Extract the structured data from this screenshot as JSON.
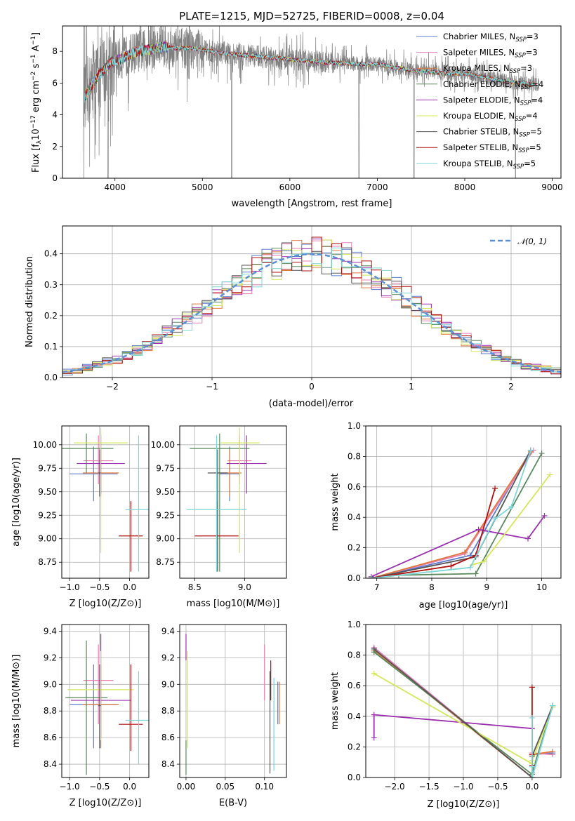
{
  "chart_data": [
    {
      "type": "line",
      "title": "PLATE=1215, MJD=52725, FIBERID=0008, z=0.04",
      "xlabel": "wavelength [Angstrom, rest frame]",
      "ylabel": "Flux [f_λ 10^-17 erg cm^-2 s^-1 A^-1]",
      "xlim": [
        3400,
        9100
      ],
      "ylim": [
        0,
        9.6
      ],
      "xticks": [
        4000,
        5000,
        6000,
        7000,
        8000,
        9000
      ],
      "yticks": [
        0,
        2,
        4,
        6,
        8
      ],
      "legend_position": "upper right",
      "data_series": {
        "name": "data",
        "color": "#808080"
      },
      "x": [
        3650,
        3800,
        3950,
        4100,
        4250,
        4400,
        4550,
        4700,
        4850,
        5000,
        5200,
        5400,
        5600,
        5800,
        6000,
        6200,
        6400,
        6600,
        6800,
        7000,
        7200,
        7400,
        7600,
        7800,
        8000,
        8200,
        8400,
        8600,
        8800
      ],
      "model_flux": [
        5.1,
        6.4,
        7.3,
        7.6,
        8.0,
        8.1,
        8.3,
        8.2,
        8.2,
        8.1,
        7.9,
        7.8,
        7.7,
        7.6,
        7.5,
        7.4,
        7.3,
        7.25,
        7.2,
        7.2,
        7.0,
        6.8,
        6.7,
        6.6,
        6.6,
        6.4,
        6.2,
        6.0,
        5.9
      ],
      "series": [
        {
          "name": "Chabrier MILES, N_SSP=3",
          "color": "#5b7bcf"
        },
        {
          "name": "Salpeter MILES, N_SSP=3",
          "color": "#e87fb6"
        },
        {
          "name": "Kroupa MILES, N_SSP=3",
          "color": "#e07a3c"
        },
        {
          "name": "Chabrier ELODIE, N_SSP=4",
          "color": "#5b8a5e"
        },
        {
          "name": "Salpeter ELODIE, N_SSP=4",
          "color": "#9b30b0"
        },
        {
          "name": "Kroupa ELODIE, N_SSP=4",
          "color": "#d4e85a"
        },
        {
          "name": "Chabrier STELIB, N_SSP=5",
          "color": "#555555"
        },
        {
          "name": "Salpeter STELIB, N_SSP=5",
          "color": "#b01010"
        },
        {
          "name": "Kroupa STELIB, N_SSP=5",
          "color": "#7fd6d6"
        }
      ]
    },
    {
      "type": "line",
      "title": "",
      "xlabel": "(data-model)/error",
      "ylabel": "Normed distribution",
      "xlim": [
        -2.5,
        2.5
      ],
      "ylim": [
        0,
        0.49
      ],
      "xticks": [
        -2,
        -1,
        0,
        1,
        2
      ],
      "yticks": [
        0.0,
        0.1,
        0.2,
        0.3,
        0.4
      ],
      "grid": true,
      "legend": "𝒩(0, 1)",
      "legend_position": "upper right",
      "gauss_color": "#5b8fd6",
      "hist_bin_width": 0.1,
      "hist_series_colors": [
        "#5b7bcf",
        "#e87fb6",
        "#e07a3c",
        "#5b8a5e",
        "#9b30b0",
        "#d4e85a",
        "#555555",
        "#b01010",
        "#7fd6d6"
      ]
    },
    {
      "type": "scatter",
      "xlabel": "Z [log10(Z/Z⊙)]",
      "ylabel": "age  [log10(age/yr)]",
      "xlim": [
        -1.13,
        0.32
      ],
      "ylim": [
        8.58,
        10.2
      ],
      "xticks": [
        -1.0,
        -0.5,
        0.0
      ],
      "yticks": [
        8.75,
        9.0,
        9.25,
        9.5,
        9.75,
        10.0
      ],
      "grid": true,
      "points": [
        {
          "x": -0.6,
          "y": 9.69,
          "xerr": 0.4,
          "yerr": [
            9.4,
            9.98
          ],
          "color": "#5b7bcf"
        },
        {
          "x": -0.52,
          "y": 9.83,
          "xerr": 0.25,
          "yerr": [
            9.58,
            10.1
          ],
          "color": "#e87fb6"
        },
        {
          "x": -0.48,
          "y": 9.7,
          "xerr": 0.3,
          "yerr": [
            9.45,
            9.95
          ],
          "color": "#e07a3c"
        },
        {
          "x": -0.72,
          "y": 9.96,
          "xerr": 0.45,
          "yerr": [
            9.7,
            10.12
          ],
          "color": "#5b8a5e"
        },
        {
          "x": -0.48,
          "y": 9.8,
          "xerr": 0.4,
          "yerr": [
            9.48,
            10.1
          ],
          "color": "#9b30b0"
        },
        {
          "x": -0.48,
          "y": 10.02,
          "xerr": 0.45,
          "yerr": [
            8.85,
            10.18
          ],
          "color": "#d4e85a"
        },
        {
          "x": -0.5,
          "y": 9.7,
          "xerr": 0.02,
          "yerr": [
            9.45,
            9.95
          ],
          "color": "#555555"
        },
        {
          "x": 0.02,
          "y": 9.03,
          "xerr": 0.2,
          "yerr": [
            8.65,
            9.4
          ],
          "color": "#b01010"
        },
        {
          "x": 0.15,
          "y": 9.31,
          "xerr": 0.22,
          "yerr": [
            8.65,
            10.1
          ],
          "color": "#7fd6d6"
        }
      ]
    },
    {
      "type": "scatter",
      "xlabel": "mass [log10(M/M⊙)]",
      "ylabel": "",
      "xlim": [
        8.35,
        9.42
      ],
      "ylim": [
        8.58,
        10.2
      ],
      "xticks": [
        8.5,
        9.0
      ],
      "yticks": [
        8.75,
        9.0,
        9.25,
        9.5,
        9.75,
        10.0
      ],
      "grid": true,
      "points": [
        {
          "x": 8.85,
          "y": 9.69,
          "xerr": 0.1,
          "yerr": [
            9.4,
            9.98
          ],
          "color": "#5b7bcf"
        },
        {
          "x": 8.95,
          "y": 9.83,
          "xerr": 0.12,
          "yerr": [
            9.58,
            10.1
          ],
          "color": "#e87fb6"
        },
        {
          "x": 8.85,
          "y": 9.7,
          "xerr": 0.12,
          "yerr": [
            9.45,
            9.95
          ],
          "color": "#e07a3c"
        },
        {
          "x": 8.75,
          "y": 9.96,
          "xerr": 0.3,
          "yerr": [
            8.65,
            10.12
          ],
          "color": "#5b8a5e"
        },
        {
          "x": 9.02,
          "y": 9.8,
          "xerr": 0.2,
          "yerr": [
            9.48,
            10.1
          ],
          "color": "#9b30b0"
        },
        {
          "x": 8.95,
          "y": 10.02,
          "xerr": 0.2,
          "yerr": [
            8.85,
            10.18
          ],
          "color": "#d4e85a"
        },
        {
          "x": 8.73,
          "y": 9.7,
          "xerr": 0.1,
          "yerr": [
            8.65,
            9.95
          ],
          "color": "#555555"
        },
        {
          "x": 8.72,
          "y": 9.03,
          "xerr": 0.22,
          "yerr": [
            8.65,
            9.4
          ],
          "color": "#b01010"
        },
        {
          "x": 8.72,
          "y": 9.31,
          "xerr": 0.3,
          "yerr": [
            8.65,
            10.1
          ],
          "color": "#7fd6d6"
        }
      ]
    },
    {
      "type": "line",
      "xlabel": "age  [log10(age/yr)]",
      "ylabel": "mass weight",
      "xlim": [
        6.8,
        10.35
      ],
      "ylim": [
        0,
        1.0
      ],
      "xticks": [
        7,
        8,
        9,
        10
      ],
      "yticks": [
        0.0,
        0.2,
        0.4,
        0.6,
        0.8,
        1.0
      ],
      "grid": true,
      "series": [
        {
          "color": "#5b7bcf",
          "x": [
            6.9,
            8.7,
            9.8
          ],
          "y": [
            0.0,
            0.15,
            0.84
          ]
        },
        {
          "color": "#e87fb6",
          "x": [
            6.9,
            8.6,
            9.85
          ],
          "y": [
            0.0,
            0.16,
            0.84
          ]
        },
        {
          "color": "#e07a3c",
          "x": [
            6.9,
            8.6,
            9.8
          ],
          "y": [
            0.0,
            0.17,
            0.83
          ]
        },
        {
          "color": "#5b8a5e",
          "x": [
            7.4,
            8.8,
            10.0
          ],
          "y": [
            0.02,
            0.03,
            0.82
          ]
        },
        {
          "color": "#9b30b0",
          "x": [
            6.9,
            8.85,
            9.75,
            10.05
          ],
          "y": [
            0.01,
            0.32,
            0.26,
            0.41
          ]
        },
        {
          "color": "#d4e85a",
          "x": [
            8.75,
            8.95,
            10.15
          ],
          "y": [
            0.09,
            0.11,
            0.68
          ]
        },
        {
          "color": "#555555",
          "x": [
            6.9,
            8.8,
            9.8
          ],
          "y": [
            0.0,
            0.14,
            0.84
          ]
        },
        {
          "color": "#b01010",
          "x": [
            6.9,
            8.35,
            8.8,
            9.15
          ],
          "y": [
            0.0,
            0.08,
            0.15,
            0.59
          ]
        },
        {
          "color": "#7fd6d6",
          "x": [
            6.9,
            8.7,
            9.15,
            9.45,
            9.8
          ],
          "y": [
            0.0,
            0.07,
            0.39,
            0.47,
            0.84
          ]
        }
      ]
    },
    {
      "type": "scatter",
      "xlabel": "Z [log10(Z/Z⊙)]",
      "ylabel": "mass [log10(M/M⊙)]",
      "xlim": [
        -1.13,
        0.32
      ],
      "ylim": [
        8.3,
        9.45
      ],
      "xticks": [
        -1.0,
        -0.5,
        0.0
      ],
      "yticks": [
        8.4,
        8.6,
        8.8,
        9.0,
        9.2,
        9.4
      ],
      "grid": true,
      "points": [
        {
          "x": -0.6,
          "y": 8.85,
          "xerr": 0.4,
          "yerr": [
            8.52,
            9.15
          ],
          "color": "#5b7bcf"
        },
        {
          "x": -0.52,
          "y": 9.03,
          "xerr": 0.25,
          "yerr": [
            8.7,
            9.3
          ],
          "color": "#e87fb6"
        },
        {
          "x": -0.48,
          "y": 8.85,
          "xerr": 0.3,
          "yerr": [
            8.52,
            9.15
          ],
          "color": "#e07a3c"
        },
        {
          "x": -0.72,
          "y": 8.9,
          "xerr": 0.35,
          "yerr": [
            8.32,
            9.33
          ],
          "color": "#5b8a5e"
        },
        {
          "x": -0.48,
          "y": 8.88,
          "xerr": 0.5,
          "yerr": [
            8.6,
            9.38
          ],
          "color": "#9b30b0"
        },
        {
          "x": -0.48,
          "y": 8.96,
          "xerr": 0.55,
          "yerr": [
            8.58,
            9.25
          ],
          "color": "#d4e85a"
        },
        {
          "x": -0.5,
          "y": 8.84,
          "xerr": 0.02,
          "yerr": [
            8.52,
            9.15
          ],
          "color": "#555555"
        },
        {
          "x": 0.02,
          "y": 8.7,
          "xerr": 0.2,
          "yerr": [
            8.5,
            9.15
          ],
          "color": "#b01010"
        },
        {
          "x": 0.15,
          "y": 8.73,
          "xerr": 0.22,
          "yerr": [
            8.4,
            9.1
          ],
          "color": "#7fd6d6"
        }
      ]
    },
    {
      "type": "scatter",
      "xlabel": "E(B-V)",
      "ylabel": "",
      "xlim": [
        -0.008,
        0.128
      ],
      "ylim": [
        8.3,
        9.45
      ],
      "xticks": [
        0.0,
        0.05,
        0.1
      ],
      "yticks": [
        8.4,
        8.6,
        8.8,
        9.0,
        9.2,
        9.4
      ],
      "grid": true,
      "points": [
        {
          "x": 0.117,
          "y": 8.85,
          "yerr": [
            8.7,
            9.02
          ],
          "color": "#5b7bcf"
        },
        {
          "x": 0.1,
          "y": 9.03,
          "yerr": [
            8.88,
            9.3
          ],
          "color": "#e87fb6"
        },
        {
          "x": 0.119,
          "y": 8.85,
          "yerr": [
            8.7,
            9.02
          ],
          "color": "#e07a3c"
        },
        {
          "x": 0.0,
          "y": 8.4,
          "yerr": [
            8.32,
            8.58
          ],
          "color": "#5b8a5e"
        },
        {
          "x": 0.0,
          "y": 9.3,
          "yerr": [
            9.18,
            9.38
          ],
          "color": "#9b30b0"
        },
        {
          "x": 0.002,
          "y": 8.96,
          "yerr": [
            8.52,
            9.25
          ],
          "color": "#d4e85a"
        },
        {
          "x": 0.107,
          "y": 8.84,
          "yerr": [
            8.33,
            9.1
          ],
          "color": "#555555"
        },
        {
          "x": 0.108,
          "y": 9.08,
          "yerr": [
            8.88,
            9.18
          ],
          "color": "#b01010"
        },
        {
          "x": 0.112,
          "y": 8.85,
          "yerr": [
            8.35,
            9.05
          ],
          "color": "#7fd6d6"
        }
      ]
    },
    {
      "type": "line",
      "xlabel": "Z [log10(Z/Z⊙)]",
      "ylabel": "mass weight",
      "xlim": [
        -2.42,
        0.42
      ],
      "ylim": [
        0,
        1.0
      ],
      "xticks": [
        -2.0,
        -1.5,
        -1.0,
        -0.5,
        0.0
      ],
      "yticks": [
        0.0,
        0.2,
        0.4,
        0.6,
        0.8,
        1.0
      ],
      "grid": true,
      "series": [
        {
          "color": "#5b7bcf",
          "x": [
            -2.3,
            0.0,
            0.0,
            0.3
          ],
          "y": [
            0.84,
            0.0,
            0.15,
            0.16
          ]
        },
        {
          "color": "#e87fb6",
          "x": [
            -2.3,
            0.0,
            0.0,
            0.3
          ],
          "y": [
            0.85,
            0.0,
            0.16,
            0.15
          ]
        },
        {
          "color": "#e07a3c",
          "x": [
            -2.3,
            0.0,
            0.0,
            0.3
          ],
          "y": [
            0.83,
            0.0,
            0.15,
            0.17
          ]
        },
        {
          "color": "#5b8a5e",
          "x": [
            -2.3,
            0.0,
            0.0,
            0.3
          ],
          "y": [
            0.82,
            0.02,
            0.03,
            0.47
          ]
        },
        {
          "color": "#9b30b0",
          "x": [
            -2.3,
            -2.3,
            0.0
          ],
          "y": [
            0.26,
            0.41,
            0.32
          ]
        },
        {
          "color": "#d4e85a",
          "x": [
            -2.3,
            0.0,
            0.0,
            0.3
          ],
          "y": [
            0.68,
            0.09,
            0.11,
            0.46
          ]
        },
        {
          "color": "#555555",
          "x": [
            -2.3,
            0.0,
            0.0,
            0.3
          ],
          "y": [
            0.84,
            0.0,
            0.14,
            0.47
          ]
        },
        {
          "color": "#b01010",
          "x": [
            0.0,
            0.0,
            0.0
          ],
          "y": [
            0.15,
            0.08,
            0.59
          ]
        },
        {
          "color": "#7fd6d6",
          "x": [
            0.0,
            0.0,
            0.0,
            0.3
          ],
          "y": [
            0.07,
            0.39,
            0.0,
            0.47
          ]
        }
      ]
    }
  ]
}
